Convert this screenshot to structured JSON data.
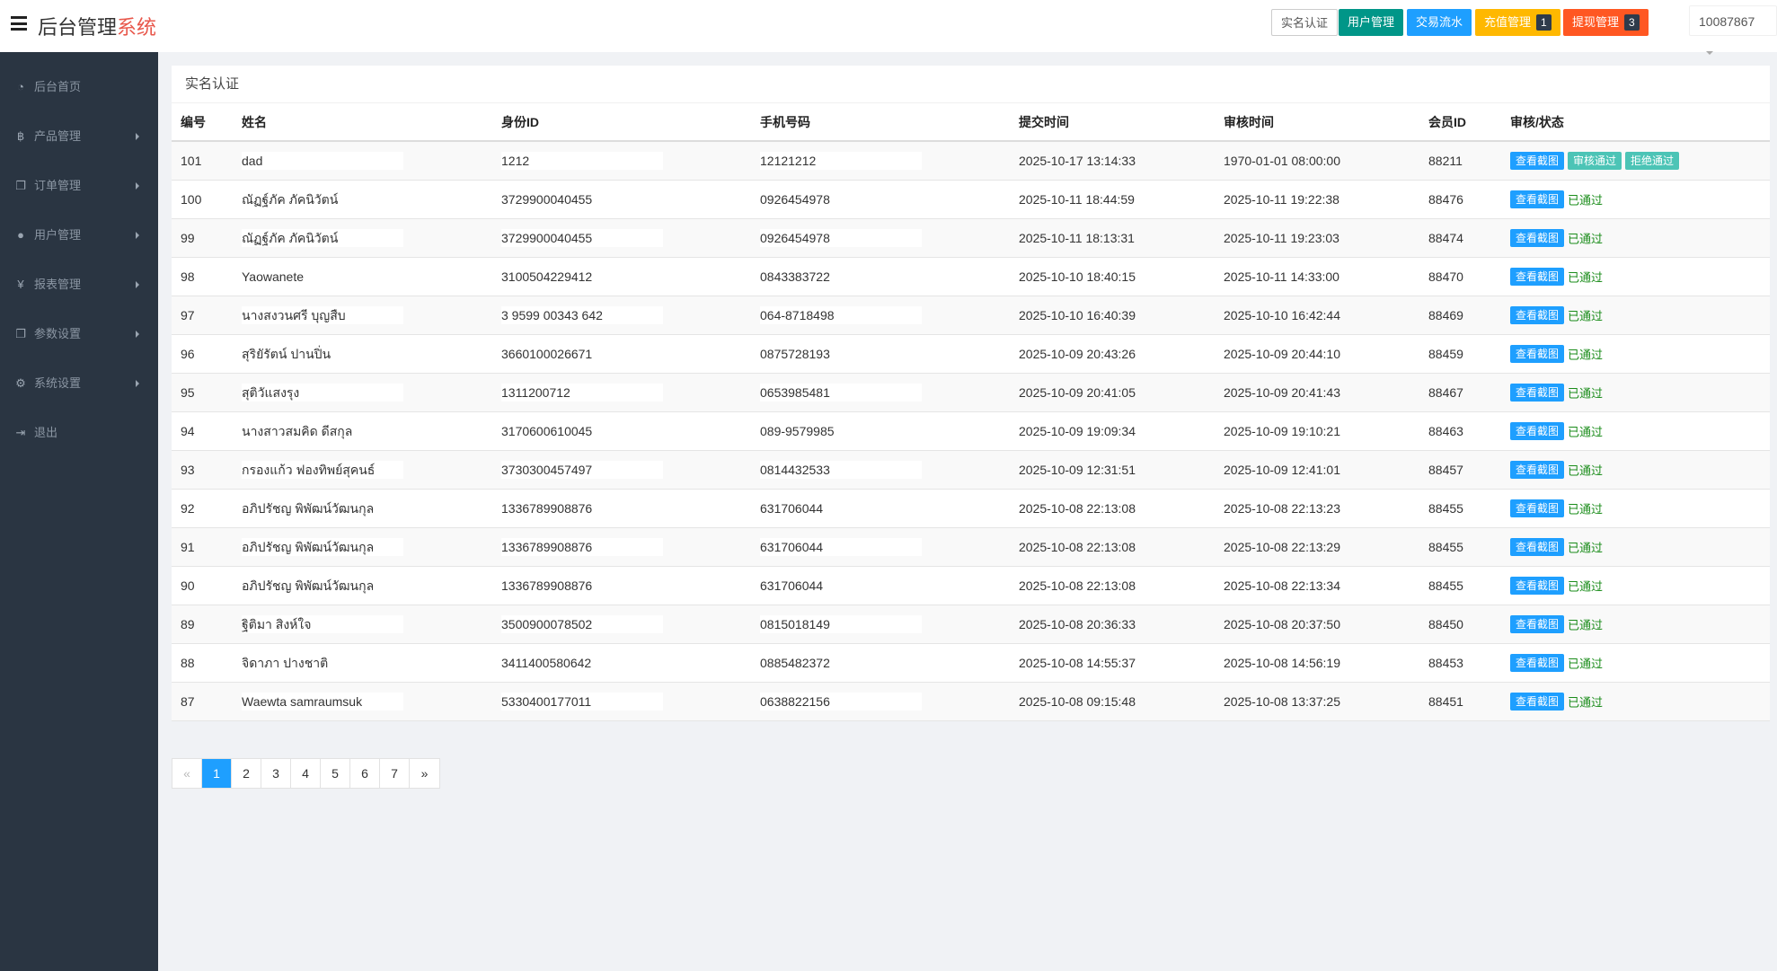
{
  "header": {
    "title_main": "后台管理",
    "title_accent": "系统",
    "buttons": [
      {
        "label": "实名认证",
        "color": "#ffffff"
      },
      {
        "label": "用户管理",
        "color": "#009688"
      },
      {
        "label": "交易流水",
        "color": "#1e9fff"
      },
      {
        "label": "充值管理",
        "color": "#ffb800",
        "badge": "1"
      },
      {
        "label": "提现管理",
        "color": "#ff5722",
        "badge": "3"
      }
    ],
    "user": "10087867"
  },
  "sidebar": {
    "items": [
      {
        "label": "后台首页",
        "icon": "dashboard-icon",
        "glyph": "◔"
      },
      {
        "label": "产品管理",
        "icon": "bitcoin-icon",
        "glyph": "฿"
      },
      {
        "label": "订单管理",
        "icon": "copy-icon",
        "glyph": "❐"
      },
      {
        "label": "用户管理",
        "icon": "user-icon",
        "glyph": "●"
      },
      {
        "label": "报表管理",
        "icon": "yen-icon",
        "glyph": "¥"
      },
      {
        "label": "参数设置",
        "icon": "copy-icon",
        "glyph": "❐"
      },
      {
        "label": "系统设置",
        "icon": "gears-icon",
        "glyph": "⚙"
      },
      {
        "label": "退出",
        "icon": "sign-out-icon",
        "glyph": "⇥"
      }
    ]
  },
  "main": {
    "title": "实名认证",
    "columns": [
      "编号",
      "姓名",
      "身份ID",
      "手机号码",
      "提交时间",
      "审核时间",
      "会员ID",
      "审核/状态"
    ],
    "actions": {
      "view": "查看截图",
      "approve": "审核通过",
      "reject": "拒绝通过",
      "passed": "已通过"
    },
    "rows": [
      [
        "101",
        "dad",
        "1212",
        "12121212",
        "2025-10-17 13:14:33",
        "1970-01-01 08:00:00",
        "88211",
        "pending"
      ],
      [
        "100",
        "ณัฏฐ์ภัค ภัคนิวัตน์",
        "3729900040455",
        "0926454978",
        "2025-10-11 18:44:59",
        "2025-10-11 19:22:38",
        "88476",
        "passed"
      ],
      [
        "99",
        "ณัฏฐ์ภัค ภัคนิวัตน์",
        "3729900040455",
        "0926454978",
        "2025-10-11 18:13:31",
        "2025-10-11 19:23:03",
        "88474",
        "passed"
      ],
      [
        "98",
        "Yaowanete",
        "3100504229412",
        "0843383722",
        "2025-10-10 18:40:15",
        "2025-10-11 14:33:00",
        "88470",
        "passed"
      ],
      [
        "97",
        "นางสงวนศรี บุญสืบ",
        "3 9599 00343 642",
        "064-8718498",
        "2025-10-10 16:40:39",
        "2025-10-10 16:42:44",
        "88469",
        "passed"
      ],
      [
        "96",
        "สุริยัรัตน์ ปานปิ่น",
        "3660100026671",
        "0875728193",
        "2025-10-09 20:43:26",
        "2025-10-09 20:44:10",
        "88459",
        "passed"
      ],
      [
        "95",
        "สุติวัแสงรุง",
        "1311200712",
        "0653985481",
        "2025-10-09 20:41:05",
        "2025-10-09 20:41:43",
        "88467",
        "passed"
      ],
      [
        "94",
        "นางสาวสมคิด ดีสกุล",
        "3170600610045",
        "089-9579985",
        "2025-10-09 19:09:34",
        "2025-10-09 19:10:21",
        "88463",
        "passed"
      ],
      [
        "93",
        "กรองแก้ว ฟองทิพย์สุคนธ์",
        "3730300457497",
        "0814432533",
        "2025-10-09 12:31:51",
        "2025-10-09 12:41:01",
        "88457",
        "passed"
      ],
      [
        "92",
        "อภิปรัชญ พิพัฒน์วัฒนกุล",
        "1336789908876",
        "631706044",
        "2025-10-08 22:13:08",
        "2025-10-08 22:13:23",
        "88455",
        "passed"
      ],
      [
        "91",
        "อภิปรัชญ พิพัฒน์วัฒนกุล",
        "1336789908876",
        "631706044",
        "2025-10-08 22:13:08",
        "2025-10-08 22:13:29",
        "88455",
        "passed"
      ],
      [
        "90",
        "อภิปรัชญ พิพัฒน์วัฒนกุล",
        "1336789908876",
        "631706044",
        "2025-10-08 22:13:08",
        "2025-10-08 22:13:34",
        "88455",
        "passed"
      ],
      [
        "89",
        "ฐิติมา  สิงห์ใจ",
        "3500900078502",
        "0815018149",
        "2025-10-08 20:36:33",
        "2025-10-08 20:37:50",
        "88450",
        "passed"
      ],
      [
        "88",
        "จิดาภา  ปางชาติ",
        "3411400580642",
        "0885482372",
        "2025-10-08 14:55:37",
        "2025-10-08 14:56:19",
        "88453",
        "passed"
      ],
      [
        "87",
        "Waewta samraumsuk",
        "5330400177011",
        "0638822156",
        "2025-10-08 09:15:48",
        "2025-10-08 13:37:25",
        "88451",
        "passed"
      ]
    ]
  },
  "pagination": {
    "prev": "«",
    "next": "»",
    "pages": [
      "1",
      "2",
      "3",
      "4",
      "5",
      "6",
      "7"
    ],
    "current": "1"
  }
}
